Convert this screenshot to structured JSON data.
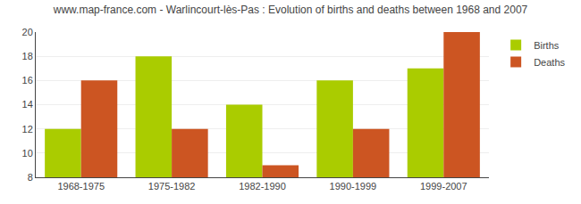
{
  "chart_data": {
    "type": "bar",
    "title": "www.map-france.com - Warlincourt-lès-Pas : Evolution of births and deaths between 1968 and 2007",
    "categories": [
      "1968-1975",
      "1975-1982",
      "1982-1990",
      "1990-1999",
      "1999-2007"
    ],
    "series": [
      {
        "name": "Births",
        "color": "#aacc00",
        "values": [
          12,
          18,
          14,
          16,
          17
        ]
      },
      {
        "name": "Deaths",
        "color": "#cc5522",
        "values": [
          16,
          12,
          9,
          12,
          20
        ]
      }
    ],
    "ylim": [
      8,
      20
    ],
    "yticks": [
      8,
      10,
      12,
      14,
      16,
      18,
      20
    ],
    "grid": true,
    "legend": "upper right"
  }
}
